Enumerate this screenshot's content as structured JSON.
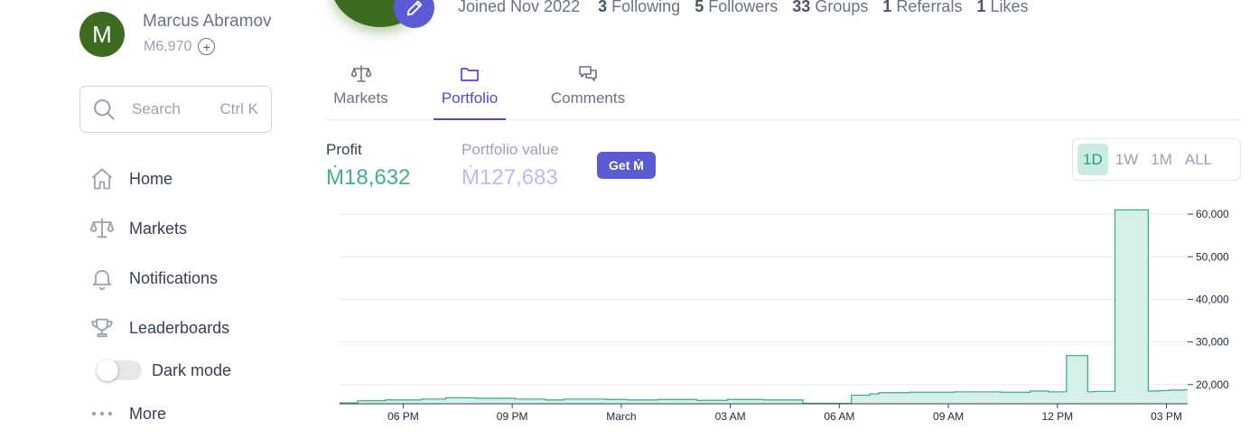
{
  "sidebar": {
    "avatar_letter": "M",
    "user_name": "Marcus Abramovich",
    "balance": "Ṁ6,970",
    "plus": "+",
    "search": {
      "placeholder": "Search",
      "shortcut": "Ctrl K"
    },
    "nav": [
      {
        "label": "Home",
        "icon": "home-icon"
      },
      {
        "label": "Markets",
        "icon": "scale-icon"
      },
      {
        "label": "Notifications",
        "icon": "bell-icon"
      },
      {
        "label": "Leaderboards",
        "icon": "trophy-icon"
      }
    ],
    "dark_mode_label": "Dark mode",
    "dark_mode_on": false,
    "more_label": "More"
  },
  "profile": {
    "joined": "Joined Nov 2022",
    "stats": [
      {
        "count": "3",
        "label": "Following"
      },
      {
        "count": "5",
        "label": "Followers"
      },
      {
        "count": "33",
        "label": "Groups"
      },
      {
        "count": "1",
        "label": "Referrals"
      },
      {
        "count": "1",
        "label": "Likes"
      }
    ]
  },
  "tabs": [
    {
      "label": "Markets",
      "icon": "scale-icon",
      "active": false
    },
    {
      "label": "Portfolio",
      "icon": "folder-icon",
      "active": true
    },
    {
      "label": "Comments",
      "icon": "chat-icon",
      "active": false
    }
  ],
  "metrics": {
    "profit_label": "Profit",
    "profit_value": "Ṁ18,632",
    "portfolio_label": "Portfolio value",
    "portfolio_value": "Ṁ127,683",
    "get_button": "Get Ṁ"
  },
  "ranges": [
    "1D",
    "1W",
    "1M",
    "ALL"
  ],
  "active_range": "1D",
  "colors": {
    "accent": "#5b5bd6",
    "profit": "#3fb18f",
    "portfolio": "#c4b5fd",
    "chart_line": "#2fae88",
    "chart_fill": "#d6efe8",
    "avatar": "#3d6b1f"
  },
  "chart_data": {
    "type": "area",
    "step": true,
    "x_ticks": [
      "06 PM",
      "09 PM",
      "March",
      "03 AM",
      "06 AM",
      "09 AM",
      "12 PM",
      "03 PM"
    ],
    "y_ticks": [
      "20,000",
      "30,000",
      "40,000",
      "50,000",
      "60,000"
    ],
    "ylim": [
      15500,
      61500
    ],
    "y_axis_position": "right",
    "grid": true,
    "x": [
      0,
      0.6,
      1.5,
      2.7,
      3.5,
      4.5,
      5.8,
      6.8,
      7.4,
      8.8,
      9.5,
      10.5,
      11.8,
      12.8,
      14.0,
      15.3,
      16.9,
      17.5,
      17.8,
      18.8,
      19.3,
      20.3,
      21.8,
      22.8,
      23.4,
      24.0,
      24.7,
      24.9,
      25.6,
      26.7,
      27.1,
      27.4,
      27.9
    ],
    "y": [
      15700,
      16200,
      16400,
      16600,
      16900,
      16800,
      16600,
      16400,
      16600,
      16500,
      16400,
      16500,
      16300,
      16500,
      16400,
      15600,
      17500,
      17800,
      18100,
      18200,
      18200,
      18300,
      18200,
      18500,
      18300,
      26800,
      18300,
      18400,
      61000,
      18500,
      18600,
      18700,
      18800
    ]
  }
}
